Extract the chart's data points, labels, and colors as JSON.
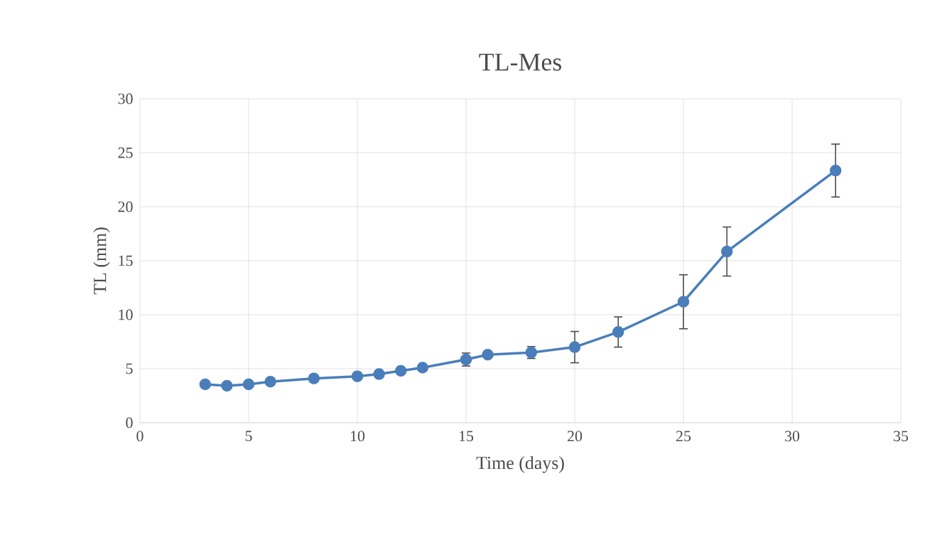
{
  "chart_data": {
    "type": "line",
    "title": "TL-Mes",
    "xlabel": "Time (days)",
    "ylabel": "TL (mm)",
    "x": [
      3,
      4,
      5,
      6,
      8,
      10,
      11,
      12,
      13,
      15,
      16,
      18,
      20,
      22,
      25,
      27,
      32
    ],
    "series": [
      {
        "color": "#4a7ebb",
        "values": [
          3.55,
          3.42,
          3.55,
          3.8,
          4.1,
          4.3,
          4.5,
          4.8,
          5.1,
          5.85,
          6.3,
          6.5,
          7.0,
          8.4,
          11.2,
          15.85,
          23.35
        ],
        "errors": [
          null,
          null,
          null,
          null,
          null,
          null,
          null,
          null,
          null,
          0.6,
          null,
          0.55,
          1.45,
          1.4,
          2.5,
          2.27,
          2.45
        ]
      }
    ],
    "xlim": [
      0,
      35
    ],
    "xticks": [
      0,
      5,
      10,
      15,
      20,
      25,
      30,
      35
    ],
    "ylim": [
      0,
      30
    ],
    "yticks": [
      0,
      5,
      10,
      15,
      20,
      25,
      30
    ],
    "grid": true,
    "marker": "circle",
    "line_style": "solid"
  }
}
